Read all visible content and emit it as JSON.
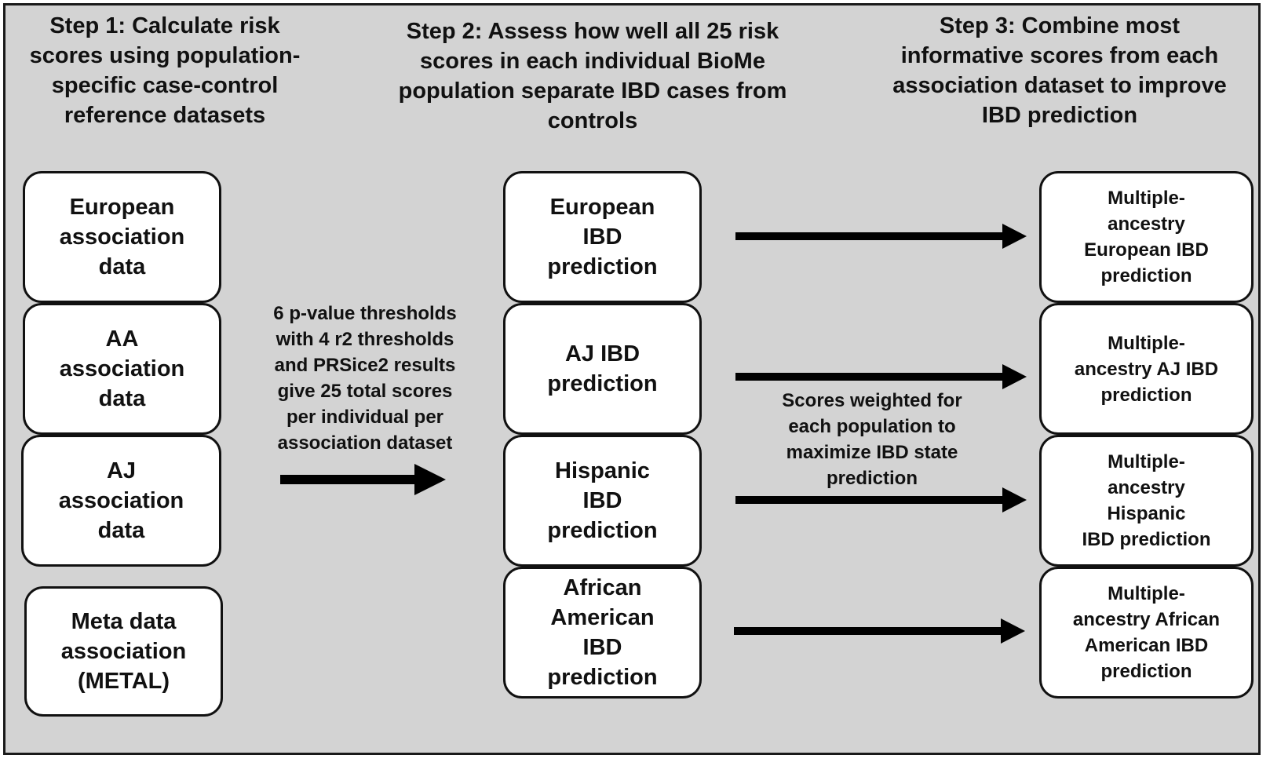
{
  "steps": {
    "step1": "Step 1: Calculate risk\nscores using population-\nspecific case-control\nreference datasets",
    "step2": "Step 2: Assess how well all 25 risk\nscores in each individual BioMe\npopulation separate IBD cases from\ncontrols",
    "step3": "Step 3: Combine most\ninformative scores from each\nassociation dataset to improve\nIBD prediction"
  },
  "association_data": [
    "European\nassociation\ndata",
    "AA\nassociation\ndata",
    "AJ\nassociation\ndata",
    "Meta data\nassociation\n(METAL)"
  ],
  "threshold_note": "6 p-value thresholds\nwith 4 r2 thresholds\nand PRSice2 results\ngive 25 total scores\nper individual per\nassociation dataset",
  "ibd_prediction": [
    "European\nIBD\nprediction",
    "AJ IBD\nprediction",
    "Hispanic\nIBD\nprediction",
    "African\nAmerican\nIBD\nprediction"
  ],
  "weighting_note": "Scores weighted for\neach population to\nmaximize IBD state\nprediction",
  "multi_ancestry": [
    "Multiple-\nancestry\nEuropean IBD\nprediction",
    "Multiple-\nancestry AJ IBD\nprediction",
    "Multiple-\nancestry\nHispanic\nIBD prediction",
    "Multiple-\nancestry African\nAmerican IBD\nprediction"
  ]
}
